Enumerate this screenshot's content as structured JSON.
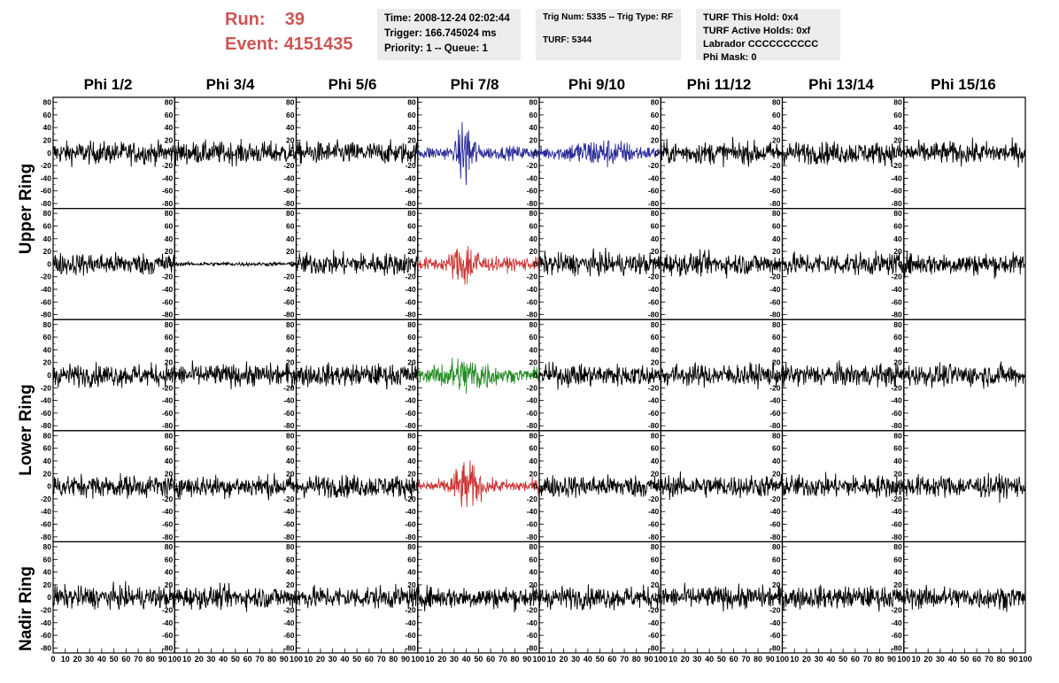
{
  "header": {
    "run_label": "Run:",
    "run_value": "39",
    "event_label": "Event:",
    "event_value": "4151435",
    "info_time": [
      "Time: 2008-12-24 02:02:44",
      "Trigger: 166.745024 ms",
      "Priority: 1 -- Queue: 1"
    ],
    "info_trig": [
      "Trig Num: 5335 -- Trig Type: RF",
      "",
      "TURF: 5344"
    ],
    "info_turf": [
      "TURF This Hold: 0x4",
      "TURF Active Holds: 0xf",
      "Labrador CCCCCCCCCC",
      "Phi Mask: 0"
    ]
  },
  "colors": {
    "run_text": "#cc5555",
    "info_bg": "#ececec",
    "trace_default": "#000000",
    "trace_blue": "#2a2a9a",
    "trace_red": "#cc3333",
    "trace_green": "#228b22"
  },
  "chart_data": {
    "type": "line",
    "columns": [
      "Phi 1/2",
      "Phi 3/4",
      "Phi 5/6",
      "Phi 7/8",
      "Phi 9/10",
      "Phi 11/12",
      "Phi 13/14",
      "Phi 15/16"
    ],
    "ring_labels": [
      "Upper Ring",
      "Lower Ring",
      "Nadir Ring"
    ],
    "rows": 5,
    "xlim": [
      0,
      100
    ],
    "ylim": [
      -85,
      85
    ],
    "yticks": [
      -80,
      -60,
      -40,
      -20,
      0,
      20,
      40,
      60,
      80
    ],
    "xticks_first": [
      0,
      10,
      20,
      30,
      40,
      50,
      60,
      70,
      80,
      90,
      100
    ],
    "xticks_other": [
      10,
      20,
      30,
      40,
      50,
      60,
      70,
      80,
      90,
      100
    ],
    "highlight": [
      {
        "row": 0,
        "col": 3,
        "color": "trace_blue",
        "amplitude": 80,
        "burst_center": 40,
        "burst_width": 8
      },
      {
        "row": 0,
        "col": 4,
        "color": "trace_blue",
        "amplitude": 30,
        "burst_center": 50,
        "burst_width": 40
      },
      {
        "row": 1,
        "col": 3,
        "color": "trace_red",
        "amplitude": 50,
        "burst_center": 40,
        "burst_width": 15
      },
      {
        "row": 2,
        "col": 3,
        "color": "trace_green",
        "amplitude": 40,
        "burst_center": 40,
        "burst_width": 30
      },
      {
        "row": 3,
        "col": 3,
        "color": "trace_red",
        "amplitude": 50,
        "burst_center": 40,
        "burst_width": 15
      },
      {
        "row": 1,
        "col": 1,
        "color": "trace_default",
        "amplitude": 4,
        "burst_center": 50,
        "burst_width": 100
      }
    ],
    "noise_amplitude": 22
  }
}
